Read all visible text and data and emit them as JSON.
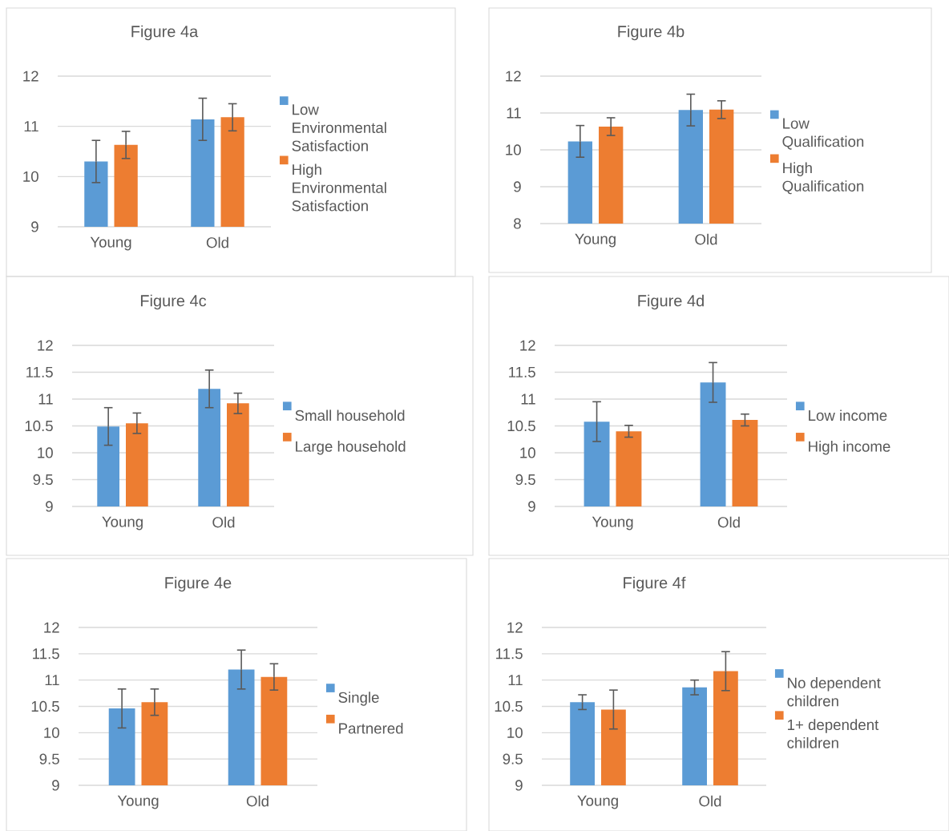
{
  "chart_data": [
    {
      "type": "bar",
      "title": "Figure 4a",
      "categories": [
        "Young",
        "Old"
      ],
      "ylim": [
        9,
        12
      ],
      "yticks": [
        9,
        10,
        11,
        12
      ],
      "grid": "y",
      "legend": "right",
      "series": [
        {
          "name": "Low Environmental Satisfaction",
          "color": "#5b9bd5",
          "values": [
            10.3,
            11.14
          ],
          "errors": [
            0.42,
            0.42
          ]
        },
        {
          "name": "High Environmental Satisfaction",
          "color": "#ed7d31",
          "values": [
            10.63,
            11.18
          ],
          "errors": [
            0.27,
            0.27
          ]
        }
      ]
    },
    {
      "type": "bar",
      "title": "Figure 4b",
      "categories": [
        "Young",
        "Old"
      ],
      "ylim": [
        8,
        12
      ],
      "yticks": [
        8,
        9,
        10,
        11,
        12
      ],
      "grid": "y",
      "legend": "right",
      "series": [
        {
          "name": "Low Qualification",
          "color": "#5b9bd5",
          "values": [
            10.23,
            11.08
          ],
          "errors": [
            0.43,
            0.43
          ]
        },
        {
          "name": "High Qualification",
          "color": "#ed7d31",
          "values": [
            10.63,
            11.09
          ],
          "errors": [
            0.24,
            0.24
          ]
        }
      ]
    },
    {
      "type": "bar",
      "title": "Figure 4c",
      "categories": [
        "Young",
        "Old"
      ],
      "ylim": [
        9,
        12
      ],
      "yticks": [
        9,
        9.5,
        10,
        10.5,
        11,
        11.5,
        12
      ],
      "grid": "y",
      "legend": "right",
      "series": [
        {
          "name": "Small household",
          "color": "#5b9bd5",
          "values": [
            10.49,
            11.19
          ],
          "errors": [
            0.35,
            0.35
          ]
        },
        {
          "name": "Large household",
          "color": "#ed7d31",
          "values": [
            10.55,
            10.92
          ],
          "errors": [
            0.19,
            0.19
          ]
        }
      ]
    },
    {
      "type": "bar",
      "title": "Figure 4d",
      "categories": [
        "Young",
        "Old"
      ],
      "ylim": [
        9,
        12
      ],
      "yticks": [
        9,
        9.5,
        10,
        10.5,
        11,
        11.5,
        12
      ],
      "grid": "y",
      "legend": "right",
      "series": [
        {
          "name": "Low income",
          "color": "#5b9bd5",
          "values": [
            10.58,
            11.31
          ],
          "errors": [
            0.37,
            0.37
          ]
        },
        {
          "name": "High income",
          "color": "#ed7d31",
          "values": [
            10.4,
            10.61
          ],
          "errors": [
            0.11,
            0.11
          ]
        }
      ]
    },
    {
      "type": "bar",
      "title": "Figure 4e",
      "categories": [
        "Young",
        "Old"
      ],
      "ylim": [
        9,
        12
      ],
      "yticks": [
        9,
        9.5,
        10,
        10.5,
        11,
        11.5,
        12
      ],
      "grid": "y",
      "legend": "right",
      "series": [
        {
          "name": "Single",
          "color": "#5b9bd5",
          "values": [
            10.46,
            11.2
          ],
          "errors": [
            0.37,
            0.37
          ]
        },
        {
          "name": "Partnered",
          "color": "#ed7d31",
          "values": [
            10.58,
            11.06
          ],
          "errors": [
            0.25,
            0.25
          ]
        }
      ]
    },
    {
      "type": "bar",
      "title": "Figure 4f",
      "categories": [
        "Young",
        "Old"
      ],
      "ylim": [
        9,
        12
      ],
      "yticks": [
        9,
        9.5,
        10,
        10.5,
        11,
        11.5,
        12
      ],
      "grid": "y",
      "legend": "right",
      "series": [
        {
          "name": "No dependent children",
          "color": "#5b9bd5",
          "values": [
            10.58,
            10.86
          ],
          "errors": [
            0.14,
            0.14
          ]
        },
        {
          "name": "1+ dependent children",
          "color": "#ed7d31",
          "values": [
            10.44,
            11.17
          ],
          "errors": [
            0.37,
            0.37
          ]
        }
      ]
    }
  ]
}
